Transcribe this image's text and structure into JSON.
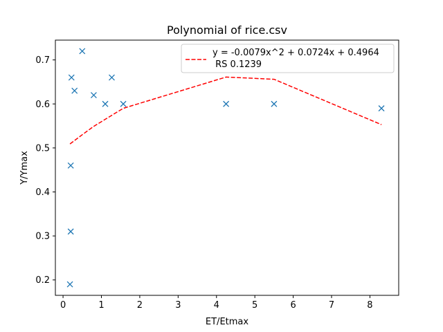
{
  "chart_data": {
    "type": "scatter",
    "title": "Polynomial of rice.csv",
    "xlabel": "ET/Etmax",
    "ylabel": "Y/Ymax",
    "xlim": [
      -0.2,
      8.75
    ],
    "ylim": [
      0.165,
      0.745
    ],
    "xticks": [
      0,
      1,
      2,
      3,
      4,
      5,
      6,
      7,
      8
    ],
    "yticks": [
      0.2,
      0.3,
      0.4,
      0.5,
      0.6,
      0.7
    ],
    "xtick_labels": [
      "0",
      "1",
      "2",
      "3",
      "4",
      "5",
      "6",
      "7",
      "8"
    ],
    "ytick_labels": [
      "0.2",
      "0.3",
      "0.4",
      "0.5",
      "0.6",
      "0.7"
    ],
    "grid": false,
    "legend_position": "top-right",
    "series": [
      {
        "type": "scatter",
        "marker": "x",
        "color": "#1f77b4",
        "points": [
          [
            0.18,
            0.19
          ],
          [
            0.2,
            0.31
          ],
          [
            0.2,
            0.46
          ],
          [
            0.22,
            0.66
          ],
          [
            0.3,
            0.63
          ],
          [
            0.5,
            0.72
          ],
          [
            0.8,
            0.62
          ],
          [
            1.1,
            0.6
          ],
          [
            1.27,
            0.66
          ],
          [
            1.57,
            0.6
          ],
          [
            4.25,
            0.6
          ],
          [
            5.5,
            0.6
          ],
          [
            8.3,
            0.59
          ]
        ]
      },
      {
        "type": "line",
        "name": "y = -0.0079x^2 + 0.0724x + 0.4964\n RS 0.1239",
        "legend_line1": "y = -0.0079x^2 + 0.0724x + 0.4964",
        "legend_line2": " RS 0.1239",
        "color": "#ff0000",
        "style": "dashed",
        "points": [
          [
            0.18,
            0.509
          ],
          [
            0.5,
            0.53
          ],
          [
            0.8,
            0.549
          ],
          [
            1.1,
            0.565
          ],
          [
            1.57,
            0.59
          ],
          [
            4.25,
            0.661
          ],
          [
            5.5,
            0.656
          ],
          [
            8.3,
            0.553
          ]
        ]
      }
    ]
  }
}
